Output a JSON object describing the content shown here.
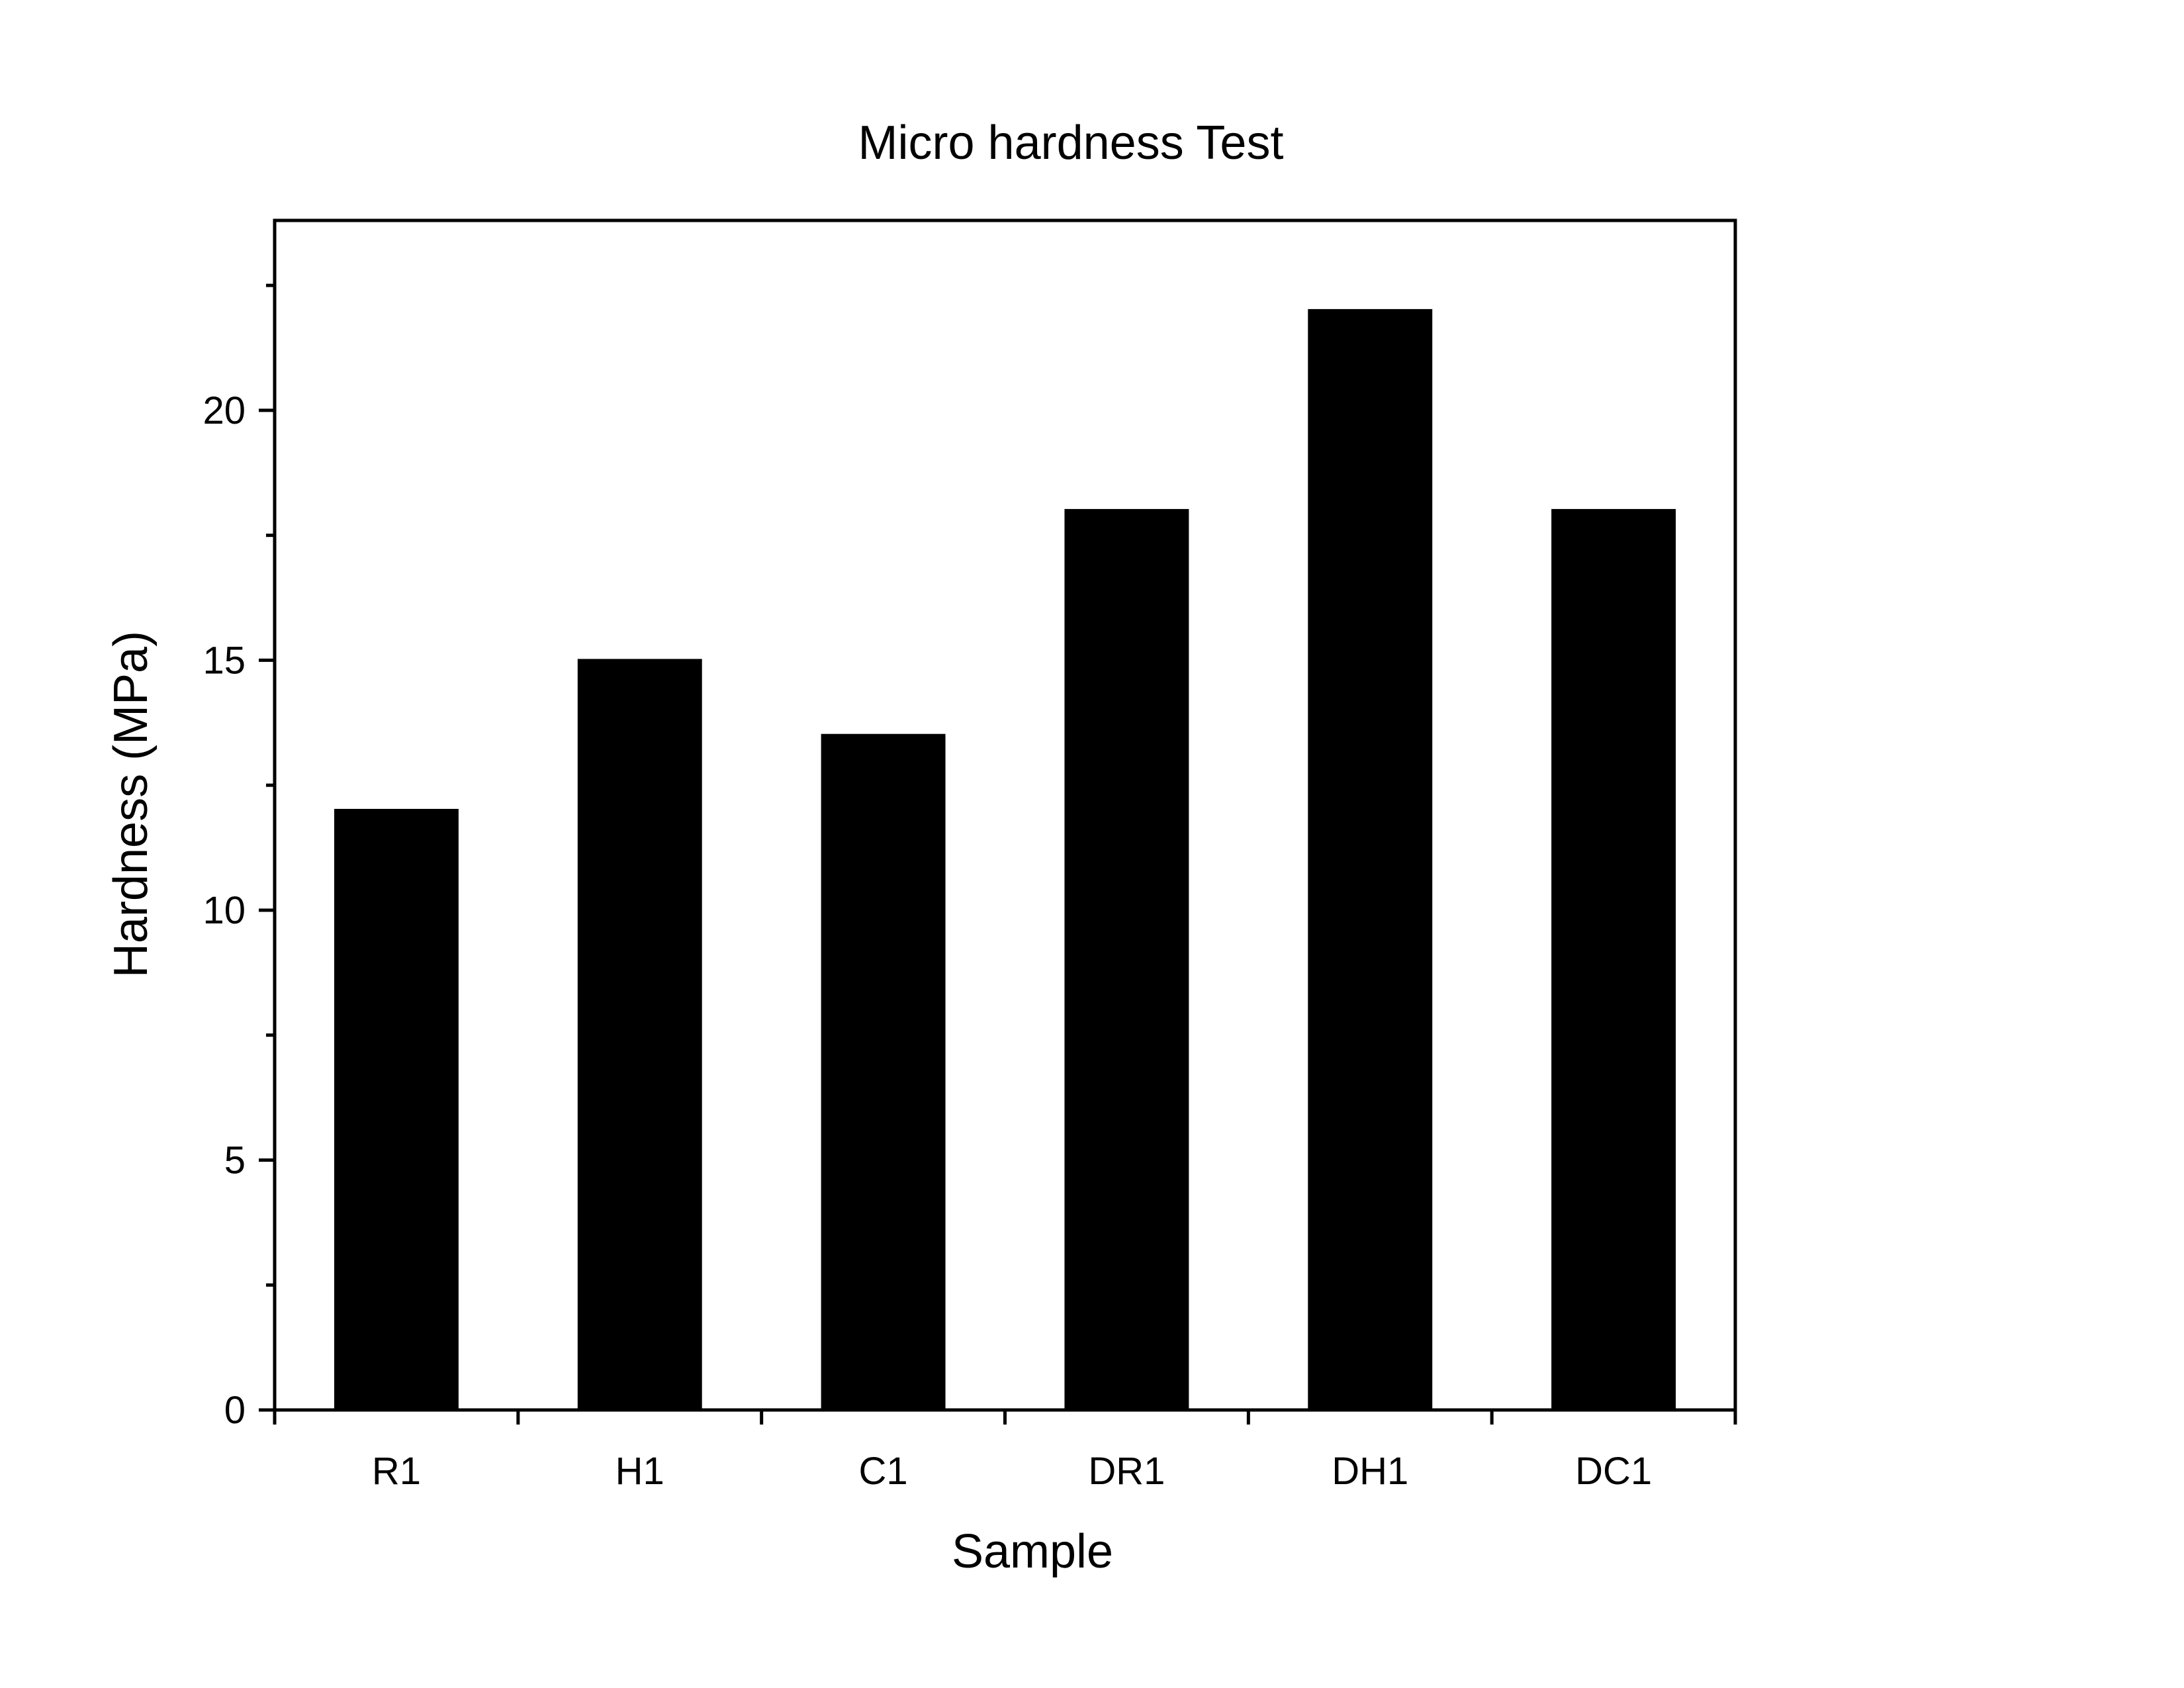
{
  "chart_data": {
    "type": "bar",
    "title": "Micro hardness Test",
    "xlabel": "Sample",
    "ylabel": "Hardness (MPa)",
    "categories": [
      "R1",
      "H1",
      "C1",
      "DR1",
      "DH1",
      "DC1"
    ],
    "values": [
      12,
      15,
      13.5,
      18,
      22,
      18
    ],
    "ylim": [
      0,
      23.8
    ],
    "yticks": [
      0,
      5,
      10,
      15,
      20
    ],
    "yticks_minor": [
      2.5,
      7.5,
      12.5,
      17.5,
      22.5
    ],
    "grid": false,
    "legend": "none",
    "colors": {
      "bar": "#000000",
      "axis": "#000000",
      "background": "#ffffff"
    }
  }
}
